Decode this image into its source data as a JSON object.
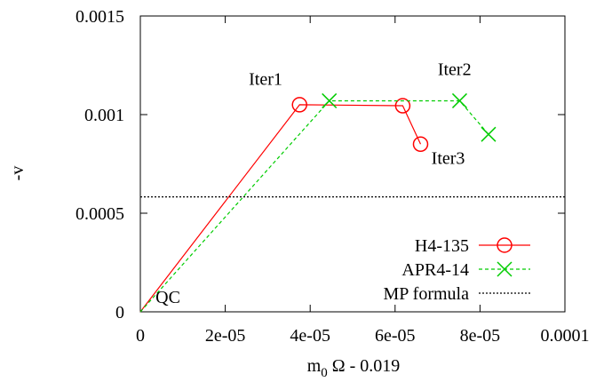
{
  "chart_data": {
    "type": "line",
    "xlabel_main": "m",
    "xlabel_sub": "0",
    "xlabel_rest": " Ω - 0.019",
    "ylabel": "-v",
    "xlim": [
      0,
      0.0001
    ],
    "ylim": [
      0,
      0.0015
    ],
    "xticks": [
      {
        "value": 0,
        "label": "0"
      },
      {
        "value": 2e-05,
        "label": "2e-05"
      },
      {
        "value": 4e-05,
        "label": "4e-05"
      },
      {
        "value": 6e-05,
        "label": "6e-05"
      },
      {
        "value": 8e-05,
        "label": "8e-05"
      },
      {
        "value": 0.0001,
        "label": "0.0001"
      }
    ],
    "yticks": [
      {
        "value": 0,
        "label": "0"
      },
      {
        "value": 0.0005,
        "label": "0.0005"
      },
      {
        "value": 0.001,
        "label": "0.001"
      },
      {
        "value": 0.0015,
        "label": "0.0015"
      }
    ],
    "grid": false,
    "legend_position": "bottom-right",
    "series": [
      {
        "name": "H4-135",
        "color": "#ff0000",
        "dash": "solid",
        "marker": "circle",
        "x": [
          0,
          3.75e-05,
          6.18e-05,
          6.6e-05
        ],
        "y": [
          0,
          0.00105,
          0.001045,
          0.00085
        ],
        "marked": [
          false,
          true,
          true,
          true
        ]
      },
      {
        "name": "APR4-14",
        "color": "#00cc00",
        "dash": "dashed",
        "marker": "x",
        "x": [
          0,
          4.45e-05,
          7.52e-05,
          8.2e-05
        ],
        "y": [
          0,
          0.00107,
          0.00107,
          0.0009
        ],
        "marked": [
          false,
          true,
          true,
          true
        ]
      },
      {
        "name": "MP formula",
        "color": "#000000",
        "dash": "dotted",
        "marker": "none",
        "x": [
          0,
          0.0001
        ],
        "y": [
          0.000583,
          0.000583
        ],
        "marked": [
          false,
          false
        ]
      }
    ],
    "annotations": [
      {
        "text": "Iter1",
        "x": 2.95e-05,
        "y": 0.00115
      },
      {
        "text": "Iter2",
        "x": 7.4e-05,
        "y": 0.0012
      },
      {
        "text": "Iter3",
        "x": 7.25e-05,
        "y": 0.00075
      },
      {
        "text": "QC",
        "x": 6.5e-06,
        "y": 4.5e-05
      }
    ]
  }
}
